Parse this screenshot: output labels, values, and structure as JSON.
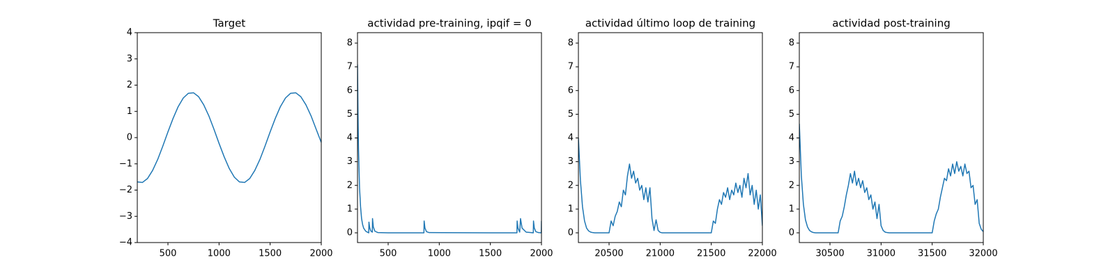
{
  "chart_data": [
    {
      "type": "line",
      "title": "Target",
      "color": "#1f77b4",
      "x": [
        200,
        250,
        300,
        350,
        400,
        450,
        500,
        550,
        600,
        650,
        700,
        750,
        800,
        850,
        900,
        950,
        1000,
        1050,
        1100,
        1150,
        1200,
        1250,
        1300,
        1350,
        1400,
        1450,
        1500,
        1550,
        1600,
        1650,
        1700,
        1750,
        1800,
        1850,
        1900,
        1950,
        2000
      ],
      "values": [
        -1.69,
        -1.71,
        -1.56,
        -1.25,
        -0.83,
        -0.32,
        0.22,
        0.73,
        1.18,
        1.51,
        1.69,
        1.71,
        1.56,
        1.25,
        0.83,
        0.32,
        -0.22,
        -0.73,
        -1.18,
        -1.51,
        -1.69,
        -1.71,
        -1.56,
        -1.25,
        -0.83,
        -0.32,
        0.22,
        0.73,
        1.18,
        1.51,
        1.69,
        1.71,
        1.56,
        1.25,
        0.83,
        0.32,
        -0.18
      ],
      "xlim": [
        200,
        2000
      ],
      "ylim": [
        -4,
        4
      ],
      "xticks": [
        500,
        1000,
        1500,
        2000
      ],
      "yticks": [
        {
          "value": -4,
          "label": "−4"
        },
        {
          "value": -3,
          "label": "−3"
        },
        {
          "value": -2,
          "label": "−2"
        },
        {
          "value": -1,
          "label": "−1"
        },
        0,
        1,
        2,
        3,
        4
      ]
    },
    {
      "type": "line",
      "title": "actividad pre-training, ipqif = 0",
      "color": "#1f77b4",
      "x": [
        200,
        205,
        210,
        220,
        230,
        240,
        250,
        260,
        280,
        300,
        310,
        312,
        320,
        330,
        345,
        347,
        355,
        370,
        400,
        500,
        850,
        852,
        860,
        875,
        900,
        1500,
        1760,
        1762,
        1770,
        1785,
        1787,
        1795,
        1810,
        1850,
        1920,
        1922,
        1930,
        1945,
        1970,
        1998,
        2000
      ],
      "values": [
        7.1,
        5.0,
        3.5,
        1.9,
        1.1,
        0.6,
        0.35,
        0.2,
        0.07,
        0.02,
        0,
        0.45,
        0.2,
        0.08,
        0.03,
        0.6,
        0.25,
        0.07,
        0.01,
        0,
        0,
        0.5,
        0.2,
        0.05,
        0.01,
        0,
        0,
        0.5,
        0.2,
        0.05,
        0.03,
        0.6,
        0.2,
        0.03,
        0,
        0.5,
        0.2,
        0.05,
        0.01,
        0,
        0.5
      ],
      "xlim": [
        200,
        2000
      ],
      "ylim": [
        -0.41,
        8.44
      ],
      "xticks": [
        500,
        1000,
        1500,
        2000
      ],
      "yticks": [
        0,
        1,
        2,
        3,
        4,
        5,
        6,
        7,
        8
      ]
    },
    {
      "type": "line",
      "title": "actividad último loop de training",
      "color": "#1f77b4",
      "x": [
        20200,
        20220,
        20240,
        20260,
        20280,
        20300,
        20320,
        20340,
        20360,
        20380,
        20400,
        20420,
        20440,
        20460,
        20480,
        20500,
        20520,
        20540,
        20560,
        20580,
        20600,
        20620,
        20640,
        20660,
        20680,
        20700,
        20720,
        20740,
        20760,
        20780,
        20800,
        20820,
        20840,
        20860,
        20880,
        20900,
        20920,
        20940,
        20960,
        20980,
        21000,
        21020,
        21040,
        21060,
        21080,
        21100,
        21120,
        21140,
        21160,
        21180,
        21200,
        21220,
        21240,
        21260,
        21280,
        21300,
        21320,
        21340,
        21360,
        21380,
        21400,
        21420,
        21440,
        21460,
        21480,
        21500,
        21520,
        21540,
        21560,
        21580,
        21600,
        21620,
        21640,
        21660,
        21680,
        21700,
        21720,
        21740,
        21760,
        21780,
        21800,
        21820,
        21840,
        21860,
        21880,
        21900,
        21920,
        21940,
        21960,
        21980,
        22000
      ],
      "values": [
        4.0,
        2.2,
        1.1,
        0.5,
        0.2,
        0.08,
        0.03,
        0.01,
        0,
        0,
        0,
        0,
        0,
        0,
        0,
        0,
        0.5,
        0.3,
        0.7,
        0.9,
        1.3,
        1.1,
        1.8,
        1.6,
        2.4,
        2.9,
        2.3,
        2.6,
        2.1,
        2.3,
        1.8,
        2.0,
        1.4,
        1.9,
        1.3,
        1.9,
        0.6,
        0.1,
        0.55,
        0.1,
        0.02,
        0,
        0,
        0,
        0,
        0,
        0,
        0,
        0,
        0,
        0,
        0,
        0,
        0,
        0,
        0,
        0,
        0,
        0,
        0,
        0,
        0,
        0,
        0,
        0,
        0,
        0.5,
        0.4,
        1.0,
        1.4,
        1.2,
        1.7,
        1.5,
        1.9,
        1.4,
        1.8,
        1.6,
        2.1,
        1.7,
        2.0,
        1.5,
        2.3,
        1.9,
        2.5,
        1.6,
        2.0,
        1.2,
        1.8,
        1.0,
        1.6,
        0.3
      ],
      "xlim": [
        20200,
        22000
      ],
      "ylim": [
        -0.41,
        8.44
      ],
      "xticks": [
        20500,
        21000,
        21500,
        22000
      ],
      "yticks": [
        0,
        1,
        2,
        3,
        4,
        5,
        6,
        7,
        8
      ]
    },
    {
      "type": "line",
      "title": "actividad post-training",
      "color": "#1f77b4",
      "x": [
        30200,
        30220,
        30240,
        30260,
        30280,
        30300,
        30320,
        30340,
        30360,
        30380,
        30400,
        30420,
        30440,
        30460,
        30480,
        30500,
        30520,
        30540,
        30560,
        30580,
        30600,
        30620,
        30640,
        30660,
        30680,
        30700,
        30720,
        30740,
        30760,
        30780,
        30800,
        30820,
        30840,
        30860,
        30880,
        30900,
        30920,
        30940,
        30960,
        30980,
        31000,
        31020,
        31040,
        31060,
        31080,
        31100,
        31120,
        31140,
        31160,
        31180,
        31200,
        31220,
        31240,
        31260,
        31280,
        31300,
        31320,
        31340,
        31360,
        31380,
        31400,
        31420,
        31440,
        31460,
        31480,
        31500,
        31520,
        31540,
        31560,
        31580,
        31600,
        31620,
        31640,
        31660,
        31680,
        31700,
        31720,
        31740,
        31760,
        31780,
        31800,
        31820,
        31840,
        31860,
        31880,
        31900,
        31920,
        31940,
        31960,
        31980,
        32000
      ],
      "values": [
        4.6,
        2.4,
        1.2,
        0.55,
        0.25,
        0.1,
        0.04,
        0.01,
        0,
        0,
        0,
        0,
        0,
        0,
        0,
        0,
        0,
        0,
        0,
        0,
        0.5,
        0.7,
        1.1,
        1.6,
        2.0,
        2.5,
        2.1,
        2.6,
        2.0,
        2.3,
        1.9,
        2.2,
        1.7,
        1.9,
        1.4,
        1.6,
        1.0,
        1.3,
        0.6,
        1.2,
        0.3,
        0.1,
        0.03,
        0.01,
        0,
        0,
        0,
        0,
        0,
        0,
        0,
        0,
        0,
        0,
        0,
        0,
        0,
        0,
        0,
        0,
        0,
        0,
        0,
        0,
        0,
        0,
        0.5,
        0.8,
        1.0,
        1.5,
        1.9,
        2.3,
        2.2,
        2.7,
        2.4,
        2.9,
        2.5,
        3.0,
        2.6,
        2.8,
        2.4,
        2.9,
        2.5,
        2.6,
        1.9,
        2.0,
        1.2,
        1.4,
        0.4,
        0.15,
        0.05
      ],
      "xlim": [
        30200,
        32000
      ],
      "ylim": [
        -0.41,
        8.44
      ],
      "xticks": [
        30500,
        31000,
        31500,
        32000
      ],
      "yticks": [
        0,
        1,
        2,
        3,
        4,
        5,
        6,
        7,
        8
      ]
    }
  ]
}
